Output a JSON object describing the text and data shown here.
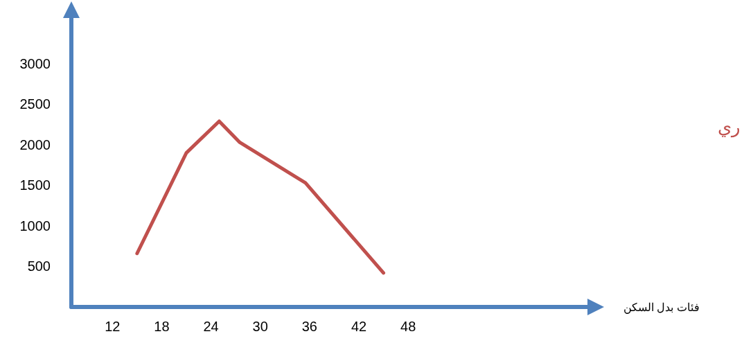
{
  "chart_data": {
    "type": "line",
    "xlabel": "فئات بدل السكن",
    "annotations": [
      "ري"
    ],
    "x": [
      15,
      21,
      25,
      27.5,
      35.5,
      45
    ],
    "series": [
      {
        "color": "#c0504d",
        "values": [
          660,
          1900,
          2290,
          2030,
          1530,
          420
        ]
      }
    ],
    "xlim": [
      7,
      70
    ],
    "xticks": [
      12,
      18,
      24,
      30,
      36,
      42,
      48
    ],
    "ylim": [
      0,
      3700
    ],
    "yticks": [
      500,
      1000,
      1500,
      2000,
      2500,
      3000
    ],
    "grid": false,
    "marker": "none",
    "line_style": "solid"
  }
}
